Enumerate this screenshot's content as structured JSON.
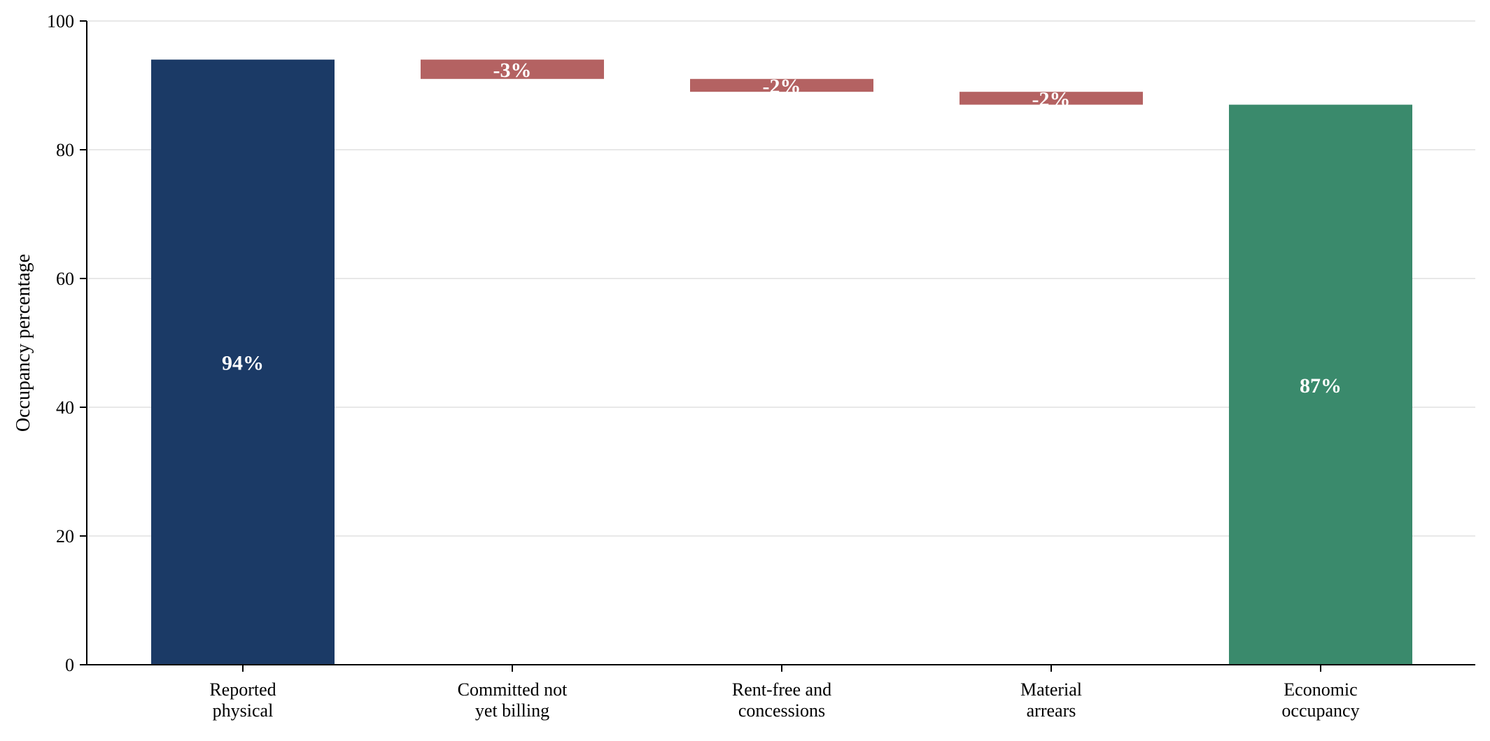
{
  "chart_data": {
    "type": "bar",
    "subtype": "waterfall",
    "title": "",
    "xlabel": "",
    "ylabel": "Occupancy percentage",
    "ylim": [
      0,
      100
    ],
    "yticks": [
      0,
      20,
      40,
      60,
      80,
      100
    ],
    "grid": "horizontal",
    "categories": [
      [
        "Reported",
        "physical"
      ],
      [
        "Committed not",
        "yet billing"
      ],
      [
        "Rent-free and",
        "concessions"
      ],
      [
        "Material",
        "arrears"
      ],
      [
        "Economic",
        "occupancy"
      ]
    ],
    "bars": [
      {
        "kind": "total",
        "start": 0,
        "end": 94,
        "label": "94%",
        "color": "#1b3a66"
      },
      {
        "kind": "decrease",
        "start": 94,
        "end": 91,
        "label": "-3%",
        "color": "#b46262"
      },
      {
        "kind": "decrease",
        "start": 91,
        "end": 89,
        "label": "-2%",
        "color": "#b46262"
      },
      {
        "kind": "decrease",
        "start": 89,
        "end": 87,
        "label": "-2%",
        "color": "#b46262"
      },
      {
        "kind": "total",
        "start": 0,
        "end": 87,
        "label": "87%",
        "color": "#3a8a6c"
      }
    ],
    "colors": {
      "total_start": "#1b3a66",
      "decrease": "#b46262",
      "total_end": "#3a8a6c",
      "grid": "#e8e8e8",
      "axis": "#000000"
    }
  }
}
